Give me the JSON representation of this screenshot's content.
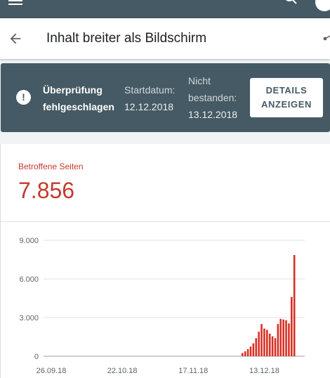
{
  "page_title": "Inhalt breiter als Bildschirm",
  "banner": {
    "status": "Überprüfung fehlgeschlagen",
    "start_label": "Startdatum:",
    "start_date": "12.12.2018",
    "fail_label": "Nicht bestanden:",
    "fail_date": "13.12.2018",
    "details_button": "DETAILS ANZEIGEN"
  },
  "metric": {
    "label": "Betroffene Seiten",
    "value": "7.856"
  },
  "colors": {
    "topbar": "#455a64",
    "accent_red": "#c5392c",
    "bar": "#d93025"
  },
  "chart_data": {
    "type": "bar",
    "ylim": [
      0,
      9000
    ],
    "y_ticks": [
      "9.000",
      "6.000",
      "3.000",
      "0"
    ],
    "y_tick_values": [
      9000,
      6000,
      3000,
      0
    ],
    "x_ticks": [
      "26.09.18",
      "22.10.18",
      "17.11.18",
      "13.12.18"
    ],
    "x_tick_day_index": [
      0,
      26,
      52,
      78
    ],
    "bar_start_day_index": 70,
    "values": [
      250,
      380,
      550,
      750,
      1000,
      1400,
      1900,
      2500,
      2150,
      2050,
      1750,
      1550,
      1400,
      2500,
      2900,
      2850,
      2800,
      2550,
      4600,
      7856
    ],
    "grid": true,
    "series_color": "#d93025"
  }
}
